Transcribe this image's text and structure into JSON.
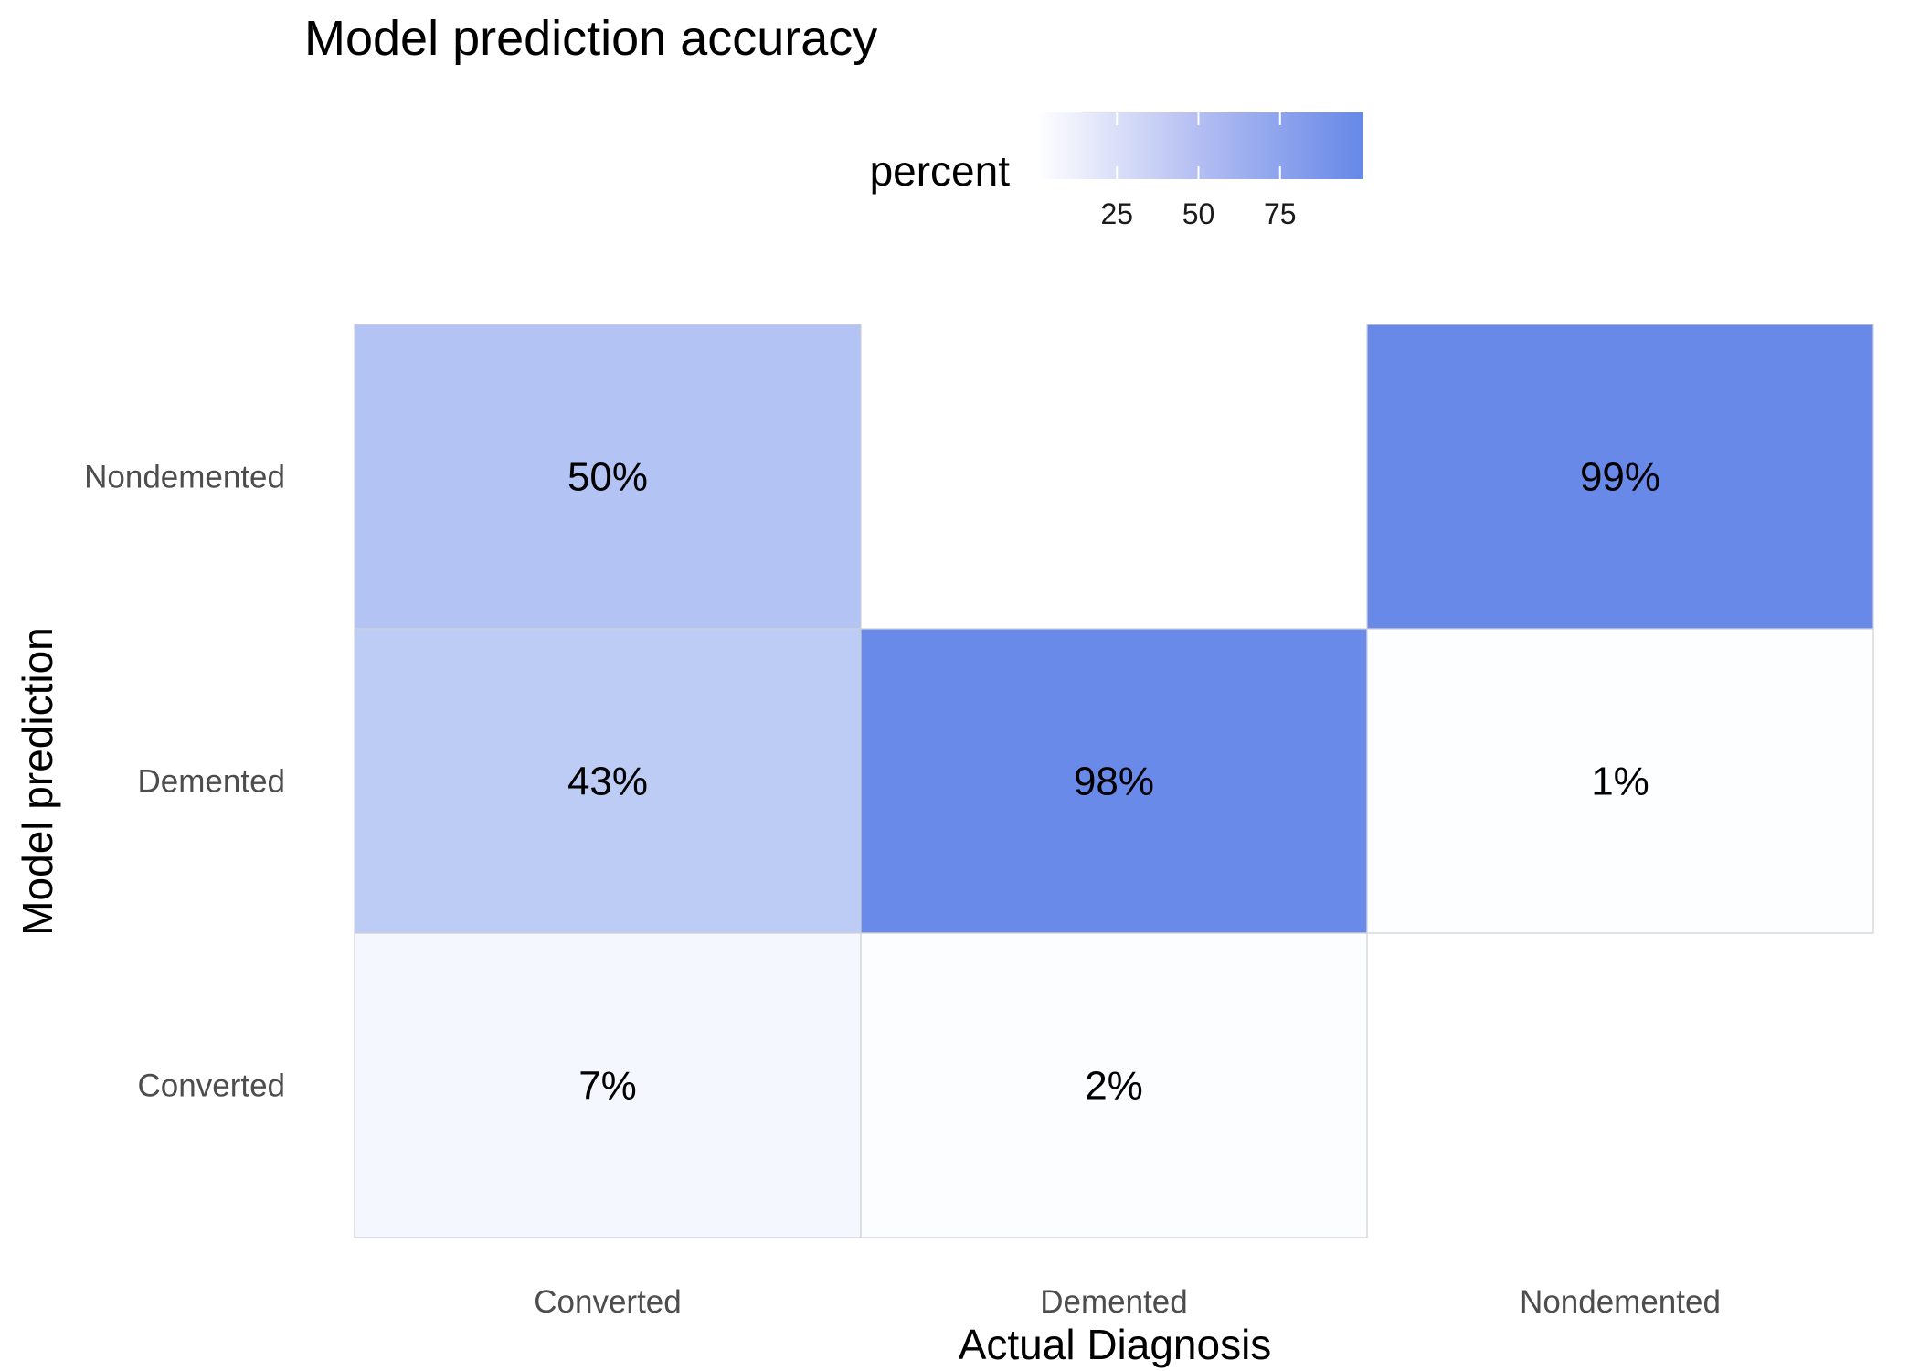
{
  "chart_data": {
    "type": "heatmap",
    "title": "Model prediction accuracy",
    "xlabel": "Actual Diagnosis",
    "ylabel": "Model prediction",
    "x_categories": [
      "Converted",
      "Demented",
      "Nondemented"
    ],
    "y_categories": [
      "Converted",
      "Demented",
      "Nondemented"
    ],
    "cells": [
      {
        "x": "Converted",
        "y": "Nondemented",
        "value": 50,
        "label": "50%"
      },
      {
        "x": "Converted",
        "y": "Demented",
        "value": 43,
        "label": "43%"
      },
      {
        "x": "Converted",
        "y": "Converted",
        "value": 7,
        "label": "7%"
      },
      {
        "x": "Demented",
        "y": "Demented",
        "value": 98,
        "label": "98%"
      },
      {
        "x": "Demented",
        "y": "Converted",
        "value": 2,
        "label": "2%"
      },
      {
        "x": "Nondemented",
        "y": "Nondemented",
        "value": 99,
        "label": "99%"
      },
      {
        "x": "Nondemented",
        "y": "Demented",
        "value": 1,
        "label": "1%"
      }
    ],
    "legend": {
      "title": "percent",
      "position": "top",
      "ticks": [
        25,
        50,
        75
      ],
      "range": [
        0,
        100
      ]
    },
    "colors": {
      "low": "#ffffff",
      "high": "#6688e8"
    },
    "grid": false
  }
}
